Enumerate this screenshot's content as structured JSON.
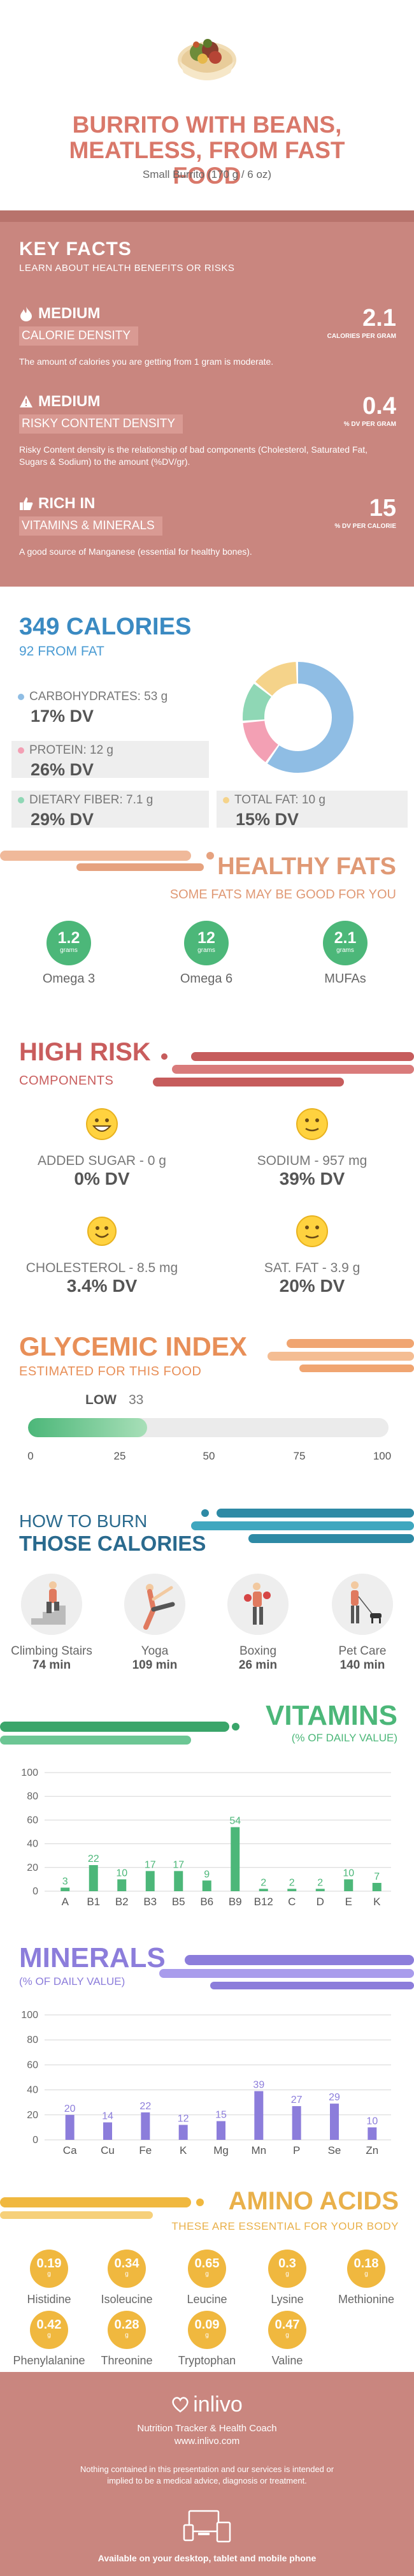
{
  "header": {
    "title_lines": [
      "BURRITO WITH BEANS,",
      "MEATLESS, FROM FAST",
      "FOOD"
    ],
    "serving": "Small Burrito (170 g / 6 oz)"
  },
  "key_facts": {
    "title": "KEY FACTS",
    "subtitle": "LEARN ABOUT HEALTH BENEFITS OR RISKS",
    "facts": [
      {
        "level": "MEDIUM",
        "category": "CALORIE DENSITY",
        "value": "2.1",
        "unit": "CALORIES PER GRAM",
        "description": "The amount of calories you are getting from 1 gram is moderate."
      },
      {
        "level": "MEDIUM",
        "category": "RISKY CONTENT DENSITY",
        "value": "0.4",
        "unit": "% DV PER GRAM",
        "description": "Risky Content density is the relationship of bad components (Cholesterol, Saturated Fat, Sugars & Sodium) to the amount (%DV/gr)."
      },
      {
        "level": "RICH IN",
        "category": "VITAMINS & MINERALS",
        "value": "15",
        "unit": "% DV PER CALORIE",
        "description": "A good source of Manganese (essential for healthy bones)."
      }
    ]
  },
  "calories": {
    "title": "349 CALORIES",
    "subtitle": "92 FROM FAT",
    "macros": [
      {
        "label": "CARBOHYDRATES: 53 g",
        "pct": "17% DV",
        "color": "#8fbde4"
      },
      {
        "label": "PROTEIN: 12 g",
        "pct": "26% DV",
        "color": "#f3a0b4"
      },
      {
        "label": "DIETARY FIBER: 7.1 g",
        "pct": "29% DV",
        "color": "#8fd7b5"
      },
      {
        "label": "TOTAL FAT: 10 g",
        "pct": "15% DV",
        "color": "#f5d38a"
      }
    ],
    "donut_fractions": [
      0.6,
      0.14,
      0.12,
      0.14
    ]
  },
  "healthy_fats": {
    "title": "HEALTHY FATS",
    "subtitle": "SOME FATS MAY BE GOOD FOR YOU",
    "items": [
      {
        "value": "1.2",
        "unit": "grams",
        "name": "Omega 3"
      },
      {
        "value": "12",
        "unit": "grams",
        "name": "Omega 6"
      },
      {
        "value": "2.1",
        "unit": "grams",
        "name": "MUFAs"
      }
    ]
  },
  "high_risk": {
    "title": "HIGH RISK",
    "subtitle": "COMPONENTS",
    "items": [
      {
        "label": "ADDED SUGAR - 0 g",
        "pct": "0% DV",
        "face": "very-happy"
      },
      {
        "label": "SODIUM - 957 mg",
        "pct": "39% DV",
        "face": "neutral-smile"
      },
      {
        "label": "CHOLESTEROL - 8.5 mg",
        "pct": "3.4% DV",
        "face": "smile"
      },
      {
        "label": "SAT. FAT - 3.9 g",
        "pct": "20% DV",
        "face": "neutral-smile"
      }
    ]
  },
  "glycemic": {
    "title": "GLYCEMIC INDEX",
    "subtitle": "ESTIMATED FOR THIS FOOD",
    "level": "LOW",
    "value": "33",
    "value_num": 33,
    "ticks": [
      "0",
      "25",
      "50",
      "75",
      "100"
    ]
  },
  "burn": {
    "title1": "HOW TO BURN",
    "title2": "THOSE CALORIES",
    "activities": [
      {
        "name": "Climbing Stairs",
        "min": "74 min",
        "icon": "stairs-icon"
      },
      {
        "name": "Yoga",
        "min": "109 min",
        "icon": "yoga-icon"
      },
      {
        "name": "Boxing",
        "min": "26 min",
        "icon": "boxing-icon"
      },
      {
        "name": "Pet Care",
        "min": "140 min",
        "icon": "dog-walk-icon"
      }
    ]
  },
  "vitamins": {
    "title": "VITAMINS",
    "subtitle": "(% OF DAILY VALUE)",
    "color": "#4cb779"
  },
  "minerals": {
    "title": "MINERALS",
    "subtitle": "(% OF DAILY VALUE)",
    "color": "#8c7ddb"
  },
  "chart_data": [
    {
      "type": "bar",
      "categories": [
        "A",
        "B1",
        "B2",
        "B3",
        "B5",
        "B6",
        "B9",
        "B12",
        "C",
        "D",
        "E",
        "K"
      ],
      "values": [
        3,
        22,
        10,
        17,
        17,
        9,
        54,
        2,
        2,
        2,
        10,
        7
      ],
      "title": "VITAMINS",
      "ylim": [
        0,
        100
      ],
      "yticks": [
        "0",
        "20",
        "40",
        "60",
        "80",
        "100"
      ],
      "grid": true
    },
    {
      "type": "bar",
      "categories": [
        "Ca",
        "Cu",
        "Fe",
        "K",
        "Mg",
        "Mn",
        "P",
        "Se",
        "Zn"
      ],
      "values": [
        20,
        14,
        22,
        12,
        15,
        39,
        27,
        29,
        10
      ],
      "title": "MINERALS",
      "ylim": [
        0,
        100
      ],
      "yticks": [
        "0",
        "20",
        "40",
        "60",
        "80",
        "100"
      ],
      "grid": true
    }
  ],
  "amino": {
    "title": "AMINO ACIDS",
    "subtitle": "THESE ARE ESSENTIAL FOR YOUR BODY",
    "unit": "g",
    "items": [
      {
        "value": "0.19",
        "name": "Histidine"
      },
      {
        "value": "0.34",
        "name": "Isoleucine"
      },
      {
        "value": "0.65",
        "name": "Leucine"
      },
      {
        "value": "0.3",
        "name": "Lysine"
      },
      {
        "value": "0.18",
        "name": "Methionine"
      },
      {
        "value": "0.42",
        "name": "Phenylalanine"
      },
      {
        "value": "0.28",
        "name": "Threonine"
      },
      {
        "value": "0.09",
        "name": "Tryptophan"
      },
      {
        "value": "0.47",
        "name": "Valine"
      }
    ]
  },
  "footer": {
    "brand": "inlivo",
    "tagline": "Nutrition Tracker & Health Coach",
    "url": "www.inlivo.com",
    "disclaimer": "Nothing contained in this presentation and our services is intended or implied to be a medical advice, diagnosis or treatment.",
    "availability": "Available on your desktop, tablet and mobile phone"
  }
}
